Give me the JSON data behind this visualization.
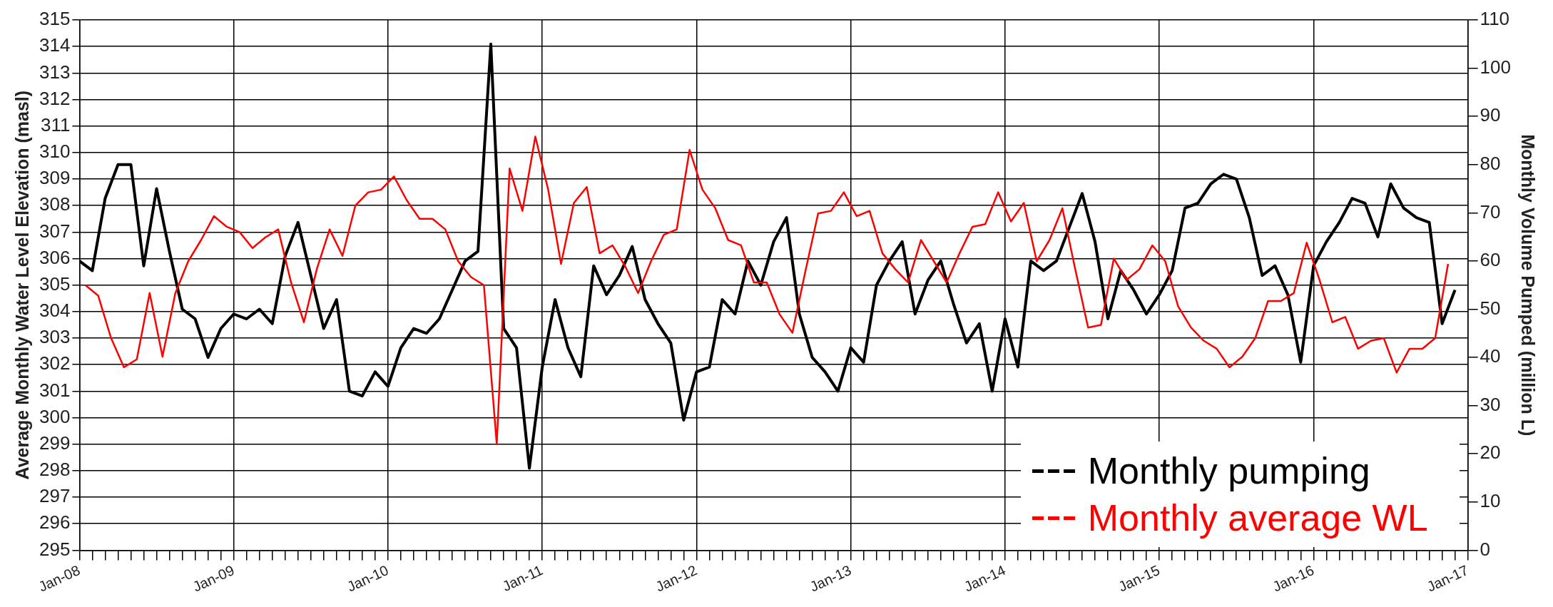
{
  "chart_data": {
    "type": "line",
    "ylabel": "Average Monthly Water Level Elevation (masl)",
    "y2label": "Monthly Volume Pumped (million L)",
    "legend": "bottom right",
    "grid": true,
    "xlim": [
      "2008-01",
      "2017-01"
    ],
    "xticks": [
      {
        "value": "2008-01",
        "label": "Jan-08"
      },
      {
        "value": "2008-02",
        "label": null
      },
      {
        "value": "2008-03",
        "label": null
      },
      {
        "value": "2008-04",
        "label": null
      },
      {
        "value": "2008-05",
        "label": null
      },
      {
        "value": "2008-06",
        "label": null
      },
      {
        "value": "2008-07",
        "label": null
      },
      {
        "value": "2008-08",
        "label": null
      },
      {
        "value": "2008-09",
        "label": null
      },
      {
        "value": "2008-10",
        "label": null
      },
      {
        "value": "2008-11",
        "label": null
      },
      {
        "value": "2008-12",
        "label": null
      },
      {
        "value": "2009-01",
        "label": "Jan-09"
      },
      {
        "value": "2009-02",
        "label": null
      },
      {
        "value": "2009-03",
        "label": null
      },
      {
        "value": "2009-04",
        "label": null
      },
      {
        "value": "2009-05",
        "label": null
      },
      {
        "value": "2009-06",
        "label": null
      },
      {
        "value": "2009-07",
        "label": null
      },
      {
        "value": "2009-08",
        "label": null
      },
      {
        "value": "2009-09",
        "label": null
      },
      {
        "value": "2009-10",
        "label": null
      },
      {
        "value": "2009-11",
        "label": null
      },
      {
        "value": "2009-12",
        "label": null
      },
      {
        "value": "2010-01",
        "label": "Jan-10"
      },
      {
        "value": "2010-02",
        "label": null
      },
      {
        "value": "2010-03",
        "label": null
      },
      {
        "value": "2010-04",
        "label": null
      },
      {
        "value": "2010-05",
        "label": null
      },
      {
        "value": "2010-06",
        "label": null
      },
      {
        "value": "2010-07",
        "label": null
      },
      {
        "value": "2010-08",
        "label": null
      },
      {
        "value": "2010-09",
        "label": null
      },
      {
        "value": "2010-10",
        "label": null
      },
      {
        "value": "2010-11",
        "label": null
      },
      {
        "value": "2010-12",
        "label": null
      },
      {
        "value": "2011-01",
        "label": "Jan-11"
      },
      {
        "value": "2011-02",
        "label": null
      },
      {
        "value": "2011-03",
        "label": null
      },
      {
        "value": "2011-04",
        "label": null
      },
      {
        "value": "2011-05",
        "label": null
      },
      {
        "value": "2011-06",
        "label": null
      },
      {
        "value": "2011-07",
        "label": null
      },
      {
        "value": "2011-08",
        "label": null
      },
      {
        "value": "2011-09",
        "label": null
      },
      {
        "value": "2011-10",
        "label": null
      },
      {
        "value": "2011-11",
        "label": null
      },
      {
        "value": "2011-12",
        "label": null
      },
      {
        "value": "2012-01",
        "label": "Jan-12"
      },
      {
        "value": "2012-02",
        "label": null
      },
      {
        "value": "2012-03",
        "label": null
      },
      {
        "value": "2012-04",
        "label": null
      },
      {
        "value": "2012-05",
        "label": null
      },
      {
        "value": "2012-06",
        "label": null
      },
      {
        "value": "2012-07",
        "label": null
      },
      {
        "value": "2012-08",
        "label": null
      },
      {
        "value": "2012-09",
        "label": null
      },
      {
        "value": "2012-10",
        "label": null
      },
      {
        "value": "2012-11",
        "label": null
      },
      {
        "value": "2012-12",
        "label": null
      },
      {
        "value": "2013-01",
        "label": "Jan-13"
      },
      {
        "value": "2013-02",
        "label": null
      },
      {
        "value": "2013-03",
        "label": null
      },
      {
        "value": "2013-04",
        "label": null
      },
      {
        "value": "2013-05",
        "label": null
      },
      {
        "value": "2013-06",
        "label": null
      },
      {
        "value": "2013-07",
        "label": null
      },
      {
        "value": "2013-08",
        "label": null
      },
      {
        "value": "2013-09",
        "label": null
      },
      {
        "value": "2013-10",
        "label": null
      },
      {
        "value": "2013-11",
        "label": null
      },
      {
        "value": "2013-12",
        "label": null
      },
      {
        "value": "2014-01",
        "label": "Jan-14"
      },
      {
        "value": "2014-02",
        "label": null
      },
      {
        "value": "2014-03",
        "label": null
      },
      {
        "value": "2014-04",
        "label": null
      },
      {
        "value": "2014-05",
        "label": null
      },
      {
        "value": "2014-06",
        "label": null
      },
      {
        "value": "2014-07",
        "label": null
      },
      {
        "value": "2014-08",
        "label": null
      },
      {
        "value": "2014-09",
        "label": null
      },
      {
        "value": "2014-10",
        "label": null
      },
      {
        "value": "2014-11",
        "label": null
      },
      {
        "value": "2014-12",
        "label": null
      },
      {
        "value": "2015-01",
        "label": "Jan-15"
      },
      {
        "value": "2015-02",
        "label": null
      },
      {
        "value": "2015-03",
        "label": null
      },
      {
        "value": "2015-04",
        "label": null
      },
      {
        "value": "2015-05",
        "label": null
      },
      {
        "value": "2015-06",
        "label": null
      },
      {
        "value": "2015-07",
        "label": null
      },
      {
        "value": "2015-08",
        "label": null
      },
      {
        "value": "2015-09",
        "label": null
      },
      {
        "value": "2015-10",
        "label": null
      },
      {
        "value": "2015-11",
        "label": null
      },
      {
        "value": "2015-12",
        "label": null
      },
      {
        "value": "2016-01",
        "label": "Jan-16"
      },
      {
        "value": "2016-02",
        "label": null
      },
      {
        "value": "2016-03",
        "label": null
      },
      {
        "value": "2016-04",
        "label": null
      },
      {
        "value": "2016-05",
        "label": null
      },
      {
        "value": "2016-06",
        "label": null
      },
      {
        "value": "2016-07",
        "label": null
      },
      {
        "value": "2016-08",
        "label": null
      },
      {
        "value": "2016-09",
        "label": null
      },
      {
        "value": "2016-10",
        "label": null
      },
      {
        "value": "2016-11",
        "label": null
      },
      {
        "value": "2016-12",
        "label": null
      },
      {
        "value": "2017-01",
        "label": "Jan-17"
      }
    ],
    "ylim": [
      295,
      315
    ],
    "yticks": [
      295,
      296,
      297,
      298,
      299,
      300,
      301,
      302,
      303,
      304,
      305,
      306,
      307,
      308,
      309,
      310,
      311,
      312,
      313,
      314,
      315
    ],
    "y2lim": [
      0,
      110
    ],
    "y2ticks": [
      0,
      10,
      20,
      30,
      40,
      50,
      60,
      70,
      80,
      90,
      100,
      110
    ],
    "series": [
      {
        "name": "Monthly pumping",
        "color": "#000000",
        "axis": "y2",
        "x": [
          "2008-01",
          "2008-02",
          "2008-03",
          "2008-04",
          "2008-05",
          "2008-06",
          "2008-07",
          "2008-08",
          "2008-09",
          "2008-10",
          "2008-11",
          "2008-12",
          "2009-01",
          "2009-02",
          "2009-03",
          "2009-04",
          "2009-05",
          "2009-06",
          "2009-07",
          "2009-08",
          "2009-09",
          "2009-10",
          "2009-11",
          "2009-12",
          "2010-01",
          "2010-02",
          "2010-03",
          "2010-04",
          "2010-05",
          "2010-06",
          "2010-07",
          "2010-08",
          "2010-09",
          "2010-10",
          "2010-11",
          "2010-12",
          "2011-01",
          "2011-02",
          "2011-03",
          "2011-04",
          "2011-05",
          "2011-06",
          "2011-07",
          "2011-08",
          "2011-09",
          "2011-10",
          "2011-11",
          "2011-12",
          "2012-01",
          "2012-02",
          "2012-03",
          "2012-04",
          "2012-05",
          "2012-06",
          "2012-07",
          "2012-08",
          "2012-09",
          "2012-10",
          "2012-11",
          "2012-12",
          "2013-01",
          "2013-02",
          "2013-03",
          "2013-04",
          "2013-05",
          "2013-06",
          "2013-07",
          "2013-08",
          "2013-09",
          "2013-10",
          "2013-11",
          "2013-12",
          "2014-01",
          "2014-02",
          "2014-03",
          "2014-04",
          "2014-05",
          "2014-06",
          "2014-07",
          "2014-08",
          "2014-09",
          "2014-10",
          "2014-11",
          "2014-12",
          "2015-01",
          "2015-02",
          "2015-03",
          "2015-04",
          "2015-05",
          "2015-06",
          "2015-07",
          "2015-08",
          "2015-09",
          "2015-10",
          "2015-11",
          "2015-12",
          "2016-01",
          "2016-02",
          "2016-03",
          "2016-04",
          "2016-05",
          "2016-06",
          "2016-07",
          "2016-08",
          "2016-09",
          "2016-10",
          "2016-11",
          "2016-12"
        ],
        "values": [
          60,
          58,
          73,
          80,
          80,
          59,
          75,
          62,
          50,
          48,
          40,
          46,
          49,
          48,
          50,
          47,
          61,
          68,
          57,
          46,
          52,
          33,
          32,
          37,
          34,
          42,
          46,
          45,
          48,
          54,
          60,
          62,
          105,
          46,
          42,
          17,
          38,
          52,
          42,
          36,
          59,
          53,
          57,
          63,
          52,
          47,
          43,
          27,
          37,
          38,
          52,
          49,
          60,
          55,
          64,
          69,
          49,
          40,
          37,
          33,
          42,
          39,
          55,
          60,
          64,
          49,
          56,
          60,
          51,
          43,
          47,
          33,
          48,
          38,
          60,
          58,
          60,
          67,
          74,
          64,
          48,
          58,
          54,
          49,
          53,
          58,
          71,
          72,
          76,
          78,
          77,
          69,
          57,
          59,
          53,
          39,
          59,
          64,
          68,
          73,
          72,
          65,
          76,
          71,
          69,
          68,
          47,
          54
        ]
      },
      {
        "name": "Monthly average WL",
        "color": "#ff0000",
        "x": [
          "2008-01-15",
          "2008-02-15",
          "2008-03-15",
          "2008-04-15",
          "2008-05-15",
          "2008-06-15",
          "2008-07-15",
          "2008-08-15",
          "2008-09-15",
          "2008-10-15",
          "2008-11-15",
          "2008-12-15",
          "2009-01-15",
          "2009-02-15",
          "2009-03-15",
          "2009-04-15",
          "2009-05-15",
          "2009-06-15",
          "2009-07-15",
          "2009-08-15",
          "2009-09-15",
          "2009-10-15",
          "2009-11-15",
          "2009-12-15",
          "2010-01-15",
          "2010-02-15",
          "2010-03-15",
          "2010-04-15",
          "2010-05-15",
          "2010-06-15",
          "2010-07-15",
          "2010-08-15",
          "2010-09-15",
          "2010-10-15",
          "2010-11-15",
          "2010-12-15",
          "2011-01-15",
          "2011-02-15",
          "2011-03-15",
          "2011-04-15",
          "2011-05-15",
          "2011-06-15",
          "2011-07-15",
          "2011-08-15",
          "2011-09-15",
          "2011-10-15",
          "2011-11-15",
          "2011-12-15",
          "2012-01-15",
          "2012-02-15",
          "2012-03-15",
          "2012-04-15",
          "2012-05-15",
          "2012-06-15",
          "2012-07-15",
          "2012-08-15",
          "2012-09-15",
          "2012-10-15",
          "2012-11-15",
          "2012-12-15",
          "2013-01-15",
          "2013-02-15",
          "2013-03-15",
          "2013-04-15",
          "2013-05-15",
          "2013-06-15",
          "2013-07-15",
          "2013-08-15",
          "2013-09-15",
          "2013-10-15",
          "2013-11-15",
          "2013-12-15",
          "2014-01-15",
          "2014-02-15",
          "2014-03-15",
          "2014-04-15",
          "2014-05-15",
          "2014-06-15",
          "2014-07-15",
          "2014-08-15",
          "2014-09-15",
          "2014-10-15",
          "2014-11-15",
          "2014-12-15",
          "2015-01-15",
          "2015-02-15",
          "2015-03-15",
          "2015-04-15",
          "2015-05-15",
          "2015-06-15",
          "2015-07-15",
          "2015-08-15",
          "2015-09-15",
          "2015-10-15",
          "2015-11-15",
          "2015-12-15",
          "2016-01-15",
          "2016-02-15",
          "2016-03-15",
          "2016-04-15",
          "2016-05-15",
          "2016-06-15",
          "2016-07-15",
          "2016-08-15",
          "2016-09-15",
          "2016-10-15",
          "2016-11-15"
        ],
        "values": [
          305.0,
          304.6,
          303.0,
          301.9,
          302.2,
          304.7,
          302.3,
          304.7,
          305.9,
          306.7,
          307.6,
          307.2,
          307.0,
          306.4,
          306.8,
          307.1,
          305.1,
          303.6,
          305.6,
          307.1,
          306.1,
          308.0,
          308.5,
          308.6,
          309.1,
          308.2,
          307.5,
          307.5,
          307.1,
          305.9,
          305.3,
          305.0,
          299.0,
          309.4,
          307.8,
          310.6,
          308.6,
          305.8,
          308.1,
          308.7,
          306.2,
          306.5,
          305.7,
          304.7,
          305.9,
          306.9,
          307.1,
          310.1,
          308.6,
          307.9,
          306.7,
          306.5,
          305.1,
          305.1,
          303.9,
          303.2,
          305.5,
          307.7,
          307.8,
          308.5,
          307.6,
          307.8,
          306.2,
          305.6,
          305.1,
          306.7,
          305.9,
          305.1,
          306.2,
          307.2,
          307.3,
          308.5,
          307.4,
          308.1,
          305.9,
          306.7,
          307.9,
          305.6,
          303.4,
          303.5,
          306.0,
          305.2,
          305.6,
          306.5,
          305.9,
          304.2,
          303.4,
          302.9,
          302.6,
          301.9,
          302.3,
          303.0,
          304.4,
          304.4,
          304.7,
          306.6,
          305.2,
          303.6,
          303.8,
          302.6,
          302.9,
          303.0,
          301.7,
          302.6,
          302.6,
          303.0,
          305.8
        ]
      }
    ]
  }
}
